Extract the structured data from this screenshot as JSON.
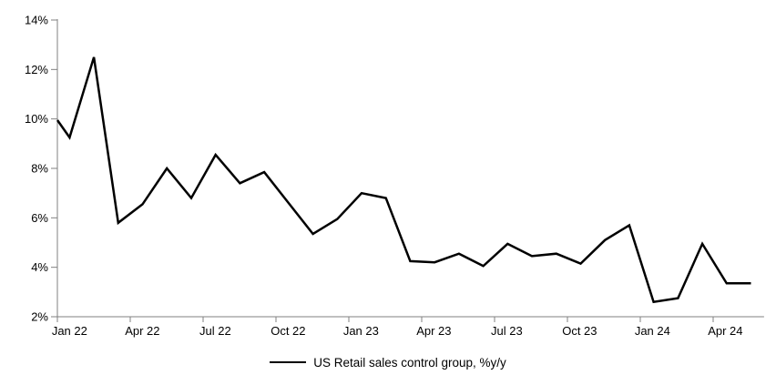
{
  "legend": {
    "label": "US Retail sales control group, %y/y"
  },
  "chart_data": {
    "type": "line",
    "title": "",
    "xlabel": "",
    "ylabel": "",
    "x": [
      "Jan 22",
      "Feb 22",
      "Mar 22",
      "Apr 22",
      "May 22",
      "Jun 22",
      "Jul 22",
      "Aug 22",
      "Sep 22",
      "Oct 22",
      "Nov 22",
      "Dec 22",
      "Jan 23",
      "Feb 23",
      "Mar 23",
      "Apr 23",
      "May 23",
      "Jun 23",
      "Jul 23",
      "Aug 23",
      "Sep 23",
      "Oct 23",
      "Nov 23",
      "Dec 23",
      "Jan 24",
      "Feb 24",
      "Mar 24",
      "Apr 24",
      "May 24"
    ],
    "series": [
      {
        "name": "US Retail sales control group, %y/y",
        "values": [
          9.25,
          12.5,
          5.8,
          6.55,
          8.0,
          6.8,
          8.55,
          7.4,
          7.85,
          6.6,
          5.35,
          5.95,
          7.0,
          6.8,
          4.25,
          4.2,
          4.55,
          4.05,
          4.95,
          4.45,
          4.55,
          4.15,
          5.1,
          5.7,
          2.6,
          2.75,
          4.95,
          3.35,
          3.35
        ],
        "color": "#000000"
      }
    ],
    "axis_entry_value": 9.95,
    "note": "line enters the plot at the left axis at ~9.95% from a prior off-chart observation",
    "ylim": [
      2,
      14
    ],
    "y_tick_step": 2,
    "y_tick_labels": [
      "2%",
      "4%",
      "6%",
      "8%",
      "10%",
      "12%",
      "14%"
    ],
    "x_tick_labels": [
      "Jan 22",
      "Apr 22",
      "Jul 22",
      "Oct 22",
      "Jan 23",
      "Apr 23",
      "Jul 23",
      "Oct 23",
      "Jan 24",
      "Apr 24"
    ],
    "x_tick_interval_months": 3,
    "grid": "off",
    "legend_position": "bottom-center",
    "axis_color": "#808080",
    "line_color": "#000000",
    "text_color": "#000000",
    "background_color": "#ffffff"
  }
}
